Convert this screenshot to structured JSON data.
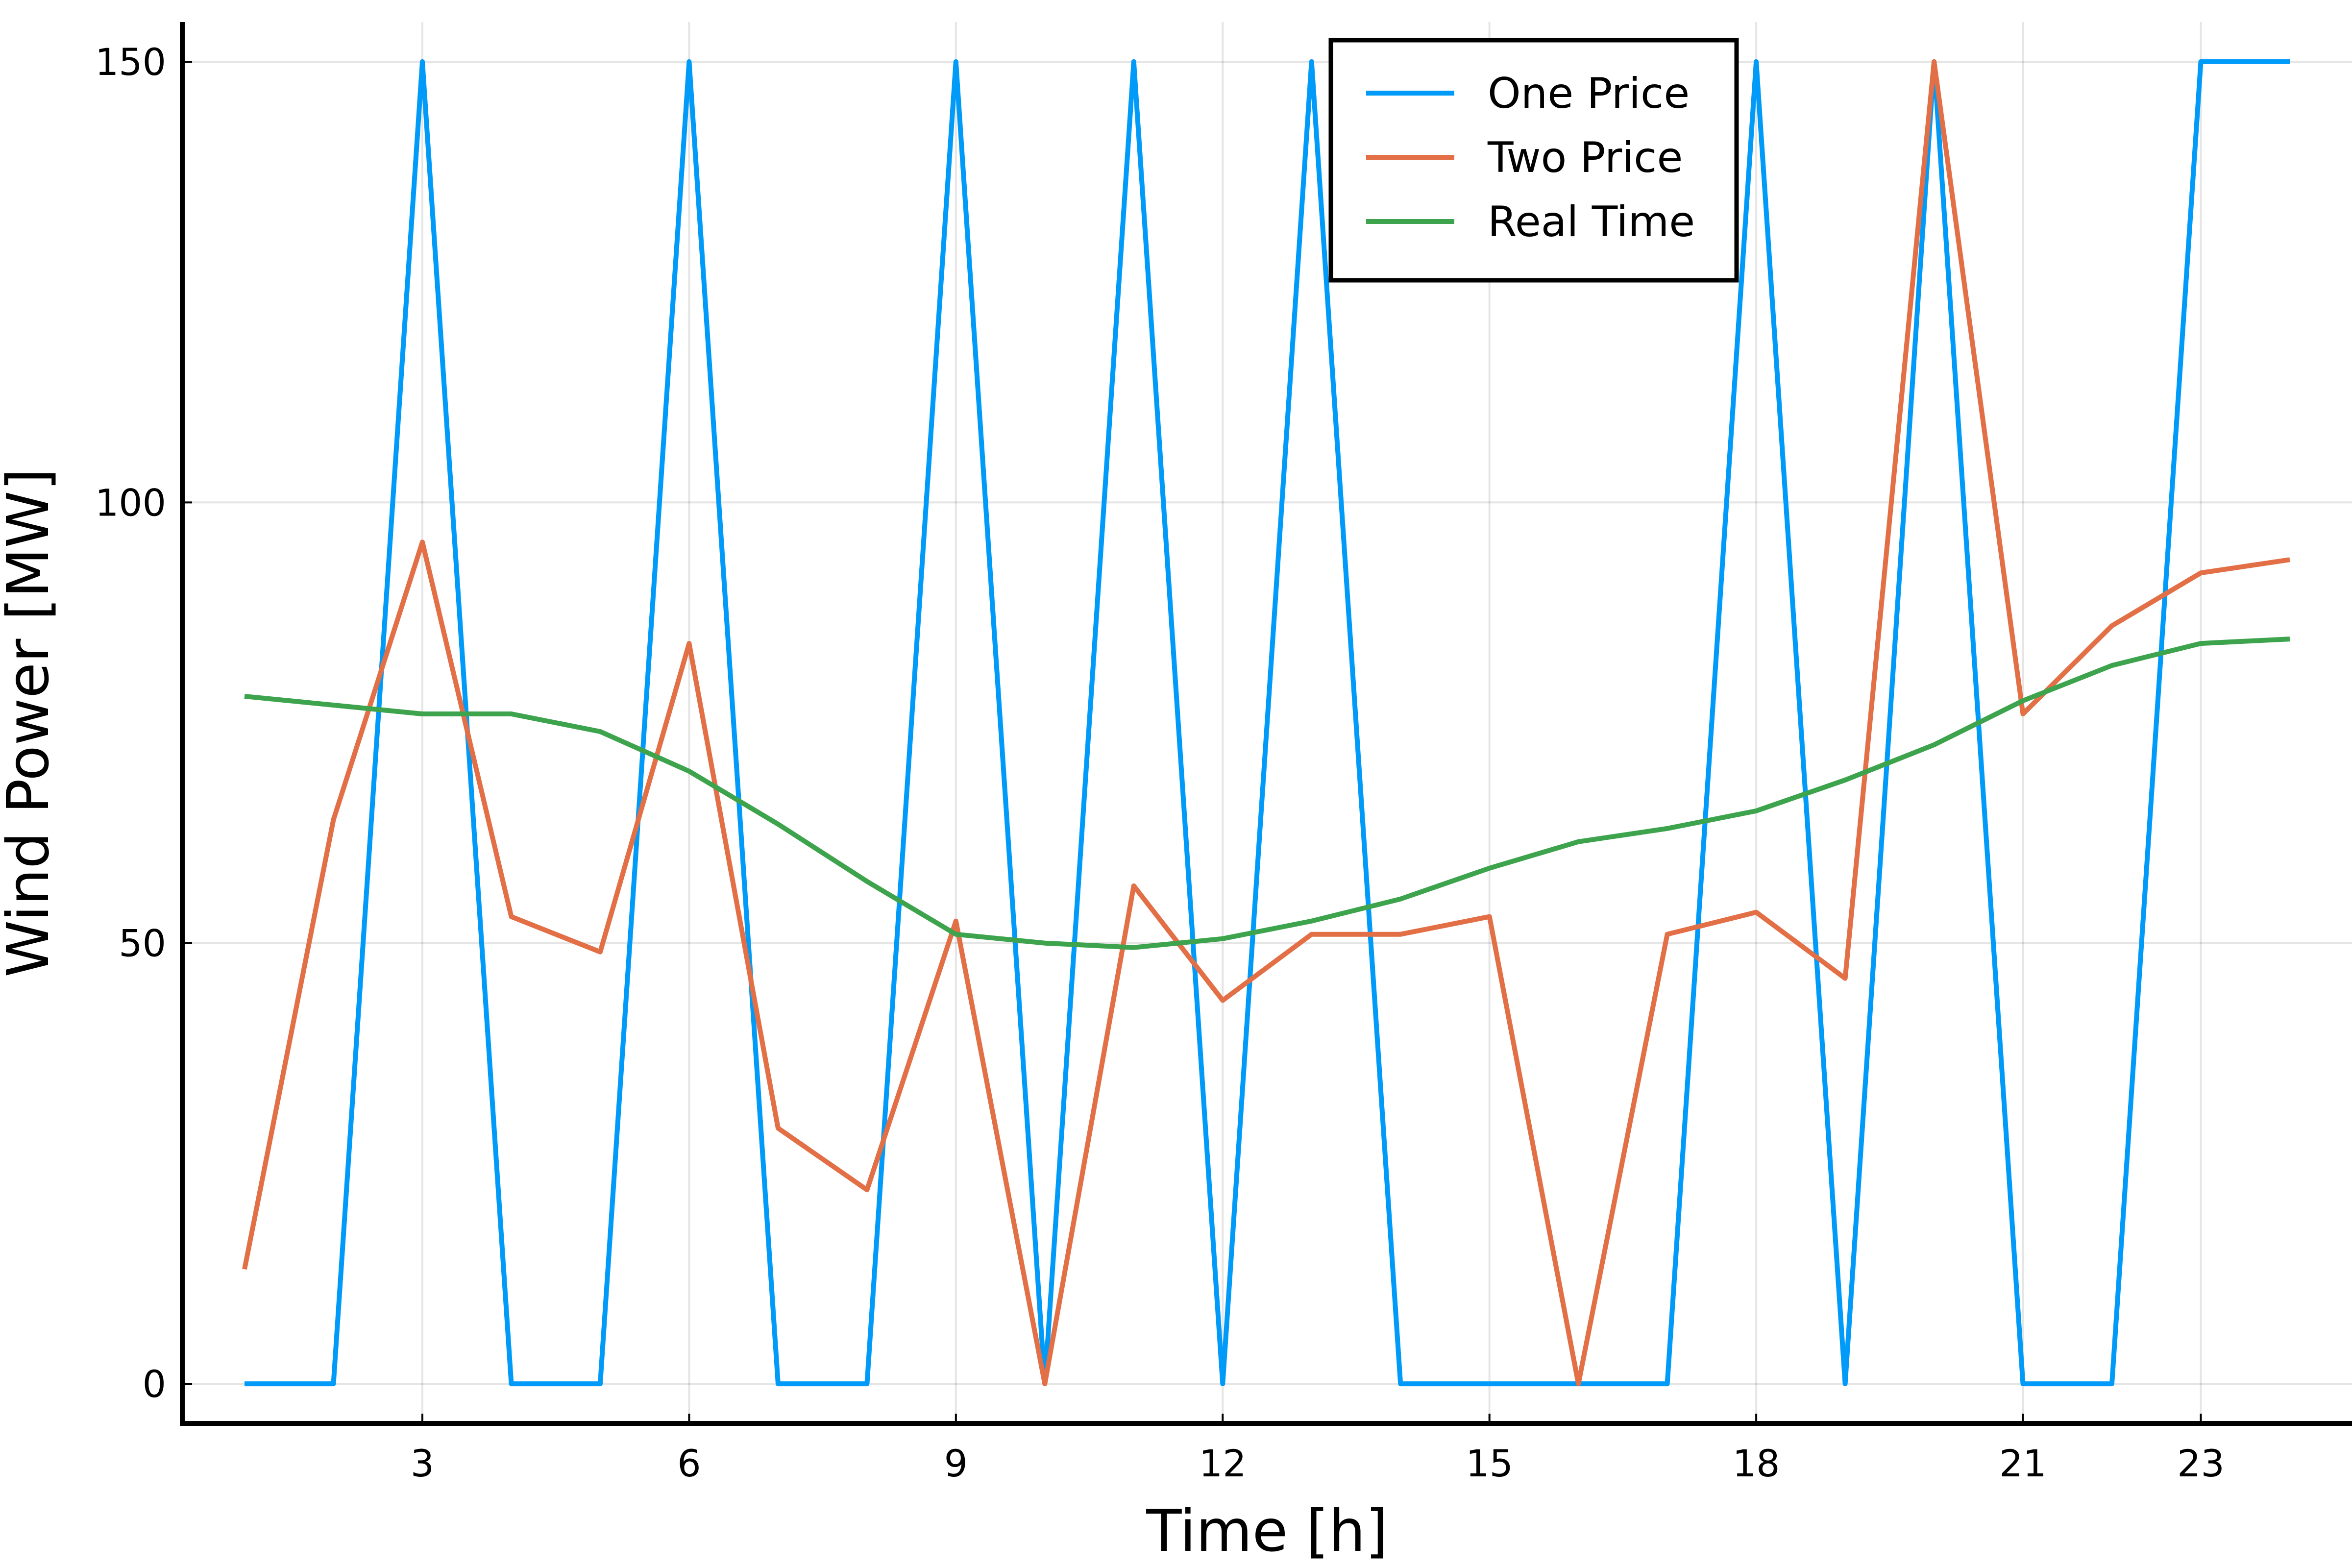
{
  "chart_data": {
    "type": "line",
    "title": "",
    "xlabel": "Time [h]",
    "ylabel": "Wind Power [MW]",
    "xlim": [
      0.3,
      24.7
    ],
    "ylim": [
      -4.5,
      154.5
    ],
    "xticks": [
      3,
      6,
      9,
      12,
      15,
      18,
      21,
      23
    ],
    "xtick_labels": [
      "3",
      "6",
      "9",
      "12",
      "15",
      "18",
      "21",
      "23"
    ],
    "yticks": [
      0,
      50,
      100,
      150
    ],
    "ytick_labels": [
      "0",
      "50",
      "100",
      "150"
    ],
    "grid": true,
    "legend_position": "top-right",
    "x": [
      1,
      2,
      3,
      4,
      5,
      6,
      7,
      8,
      9,
      10,
      11,
      12,
      13,
      14,
      15,
      16,
      17,
      18,
      19,
      20,
      21,
      22,
      23,
      24
    ],
    "series": [
      {
        "name": "One Price",
        "color": "#009af9",
        "values": [
          0,
          0,
          150,
          0,
          0,
          150,
          0,
          0,
          150,
          0,
          150,
          0,
          150,
          0,
          0,
          0,
          0,
          150,
          0,
          150,
          0,
          0,
          150,
          150
        ]
      },
      {
        "name": "Two Price",
        "color": "#e26f46",
        "values": [
          13,
          64,
          95.5,
          53,
          49,
          84,
          29,
          22,
          52.5,
          0,
          56.5,
          43.5,
          51,
          51,
          53,
          0,
          51,
          53.5,
          46,
          150,
          76,
          86,
          92,
          93.5
        ]
      },
      {
        "name": "Real Time",
        "color": "#3da44d",
        "values": [
          78,
          77,
          76,
          76,
          74,
          69.5,
          63.5,
          57,
          51,
          50,
          49.5,
          50.5,
          52.5,
          55,
          58.5,
          61.5,
          63,
          65,
          68.5,
          72.5,
          77.5,
          81.5,
          84,
          84.5
        ]
      }
    ]
  }
}
